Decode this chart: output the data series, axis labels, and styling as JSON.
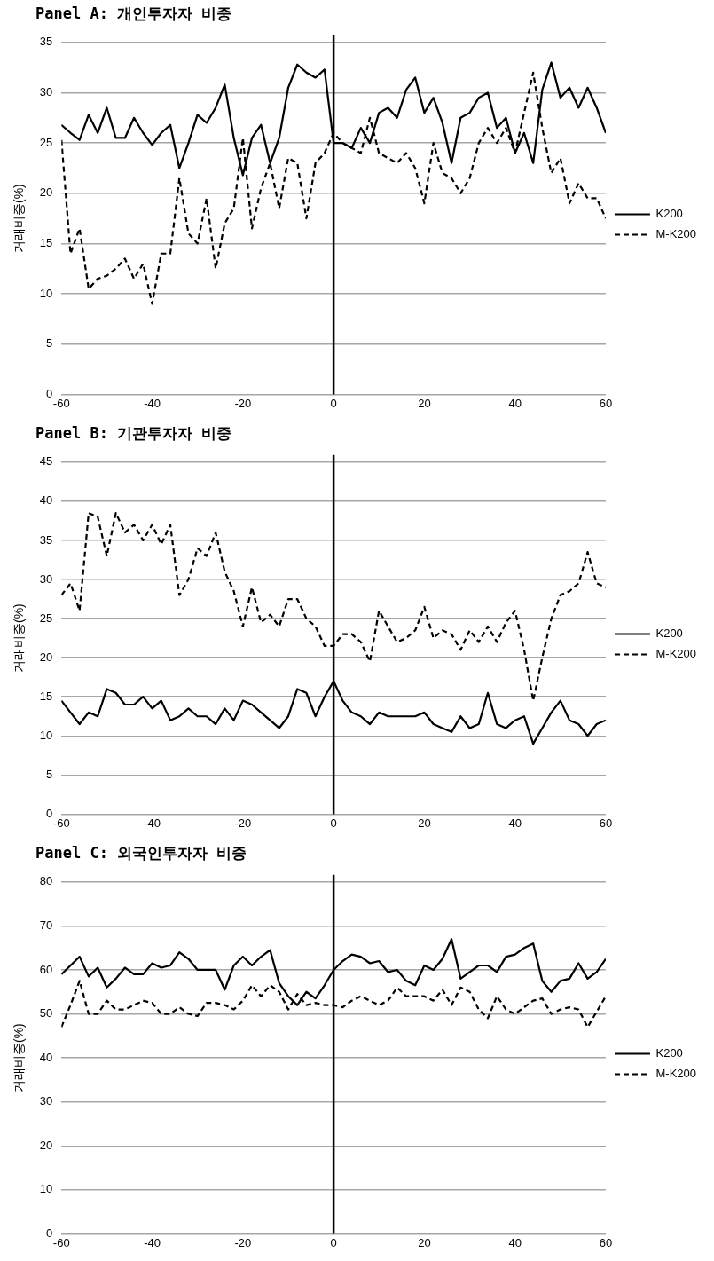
{
  "chart_data": [
    {
      "type": "line",
      "title": "Panel A: 개인투자자 비중",
      "ylabel": "거래비중(%)",
      "x": [
        -60,
        -58,
        -56,
        -54,
        -52,
        -50,
        -48,
        -46,
        -44,
        -42,
        -40,
        -38,
        -36,
        -34,
        -32,
        -30,
        -28,
        -26,
        -24,
        -22,
        -20,
        -18,
        -16,
        -14,
        -12,
        -10,
        -8,
        -6,
        -4,
        -2,
        0,
        2,
        4,
        6,
        8,
        10,
        12,
        14,
        16,
        18,
        20,
        22,
        24,
        26,
        28,
        30,
        32,
        34,
        36,
        38,
        40,
        42,
        44,
        46,
        48,
        50,
        52,
        54,
        56,
        58,
        60
      ],
      "series": [
        {
          "name": "K200",
          "color": "#000000",
          "line_style": "solid",
          "values": [
            26.8,
            26,
            25.3,
            27.8,
            26,
            28.5,
            25.5,
            25.5,
            27.5,
            26,
            24.8,
            26,
            26.8,
            22.5,
            25,
            27.8,
            27,
            28.5,
            30.8,
            25.5,
            21.8,
            25.5,
            26.8,
            23,
            25.5,
            30.5,
            32.8,
            32,
            31.5,
            32.3,
            25,
            25,
            24.5,
            26.5,
            25,
            28,
            28.5,
            27.5,
            30.3,
            31.5,
            28,
            29.5,
            27,
            23,
            27.5,
            28,
            29.5,
            30,
            26.5,
            27.5,
            24,
            26,
            23,
            30.3,
            33,
            29.5,
            30.5,
            28.5,
            30.5,
            28.5,
            26
          ]
        },
        {
          "name": "M-K200",
          "color": "#000000",
          "line_style": "dashed",
          "values": [
            25.3,
            14,
            16.5,
            10.5,
            11.5,
            11.8,
            12.5,
            13.5,
            11.5,
            13,
            9,
            14,
            14,
            21.5,
            16,
            15,
            19.5,
            12.5,
            17,
            18.5,
            25.5,
            16.5,
            20.5,
            23,
            18.5,
            23.5,
            23,
            17.5,
            23,
            24,
            26,
            25,
            24.5,
            24,
            27.5,
            24,
            23.5,
            23,
            24,
            22.5,
            19,
            25,
            22,
            21.5,
            20,
            21.5,
            25,
            26.5,
            25,
            26.5,
            24,
            28,
            32,
            26.5,
            22,
            23.5,
            19,
            21,
            19.5,
            19.5,
            17.5
          ]
        }
      ],
      "xlim": [
        -60,
        60
      ],
      "xticks": [
        -60,
        -40,
        -20,
        0,
        20,
        40,
        60
      ],
      "ylim": [
        0,
        35
      ],
      "yticks": [
        0,
        5,
        10,
        15,
        20,
        25,
        30,
        35
      ],
      "grid": "y",
      "legend": "right",
      "marker": "none",
      "ref_lines": [
        {
          "axis": "x",
          "value": 0
        }
      ]
    },
    {
      "type": "line",
      "title": "Panel B: 기관투자자 비중",
      "ylabel": "거래비중(%)",
      "x": [
        -60,
        -58,
        -56,
        -54,
        -52,
        -50,
        -48,
        -46,
        -44,
        -42,
        -40,
        -38,
        -36,
        -34,
        -32,
        -30,
        -28,
        -26,
        -24,
        -22,
        -20,
        -18,
        -16,
        -14,
        -12,
        -10,
        -8,
        -6,
        -4,
        -2,
        0,
        2,
        4,
        6,
        8,
        10,
        12,
        14,
        16,
        18,
        20,
        22,
        24,
        26,
        28,
        30,
        32,
        34,
        36,
        38,
        40,
        42,
        44,
        46,
        48,
        50,
        52,
        54,
        56,
        58,
        60
      ],
      "series": [
        {
          "name": "K200",
          "color": "#000000",
          "line_style": "solid",
          "values": [
            14.5,
            13,
            11.5,
            13,
            12.5,
            16,
            15.5,
            14,
            14,
            15,
            13.5,
            14.5,
            12,
            12.5,
            13.5,
            12.5,
            12.5,
            11.5,
            13.5,
            12,
            14.5,
            14,
            13,
            12,
            11,
            12.5,
            16,
            15.5,
            12.5,
            15,
            17,
            14.5,
            13,
            12.5,
            11.5,
            13,
            12.5,
            12.5,
            12.5,
            12.5,
            13,
            11.5,
            11,
            10.5,
            12.5,
            11,
            11.5,
            15.5,
            11.5,
            11,
            12,
            12.5,
            9,
            11,
            13,
            14.5,
            12,
            11.5,
            10,
            11.5,
            12
          ]
        },
        {
          "name": "M-K200",
          "color": "#000000",
          "line_style": "dashed",
          "values": [
            28,
            29.5,
            26,
            38.5,
            38,
            33,
            38.5,
            36,
            37,
            35,
            37,
            34.5,
            37,
            28,
            30,
            34,
            33,
            36,
            31,
            28.5,
            24,
            29,
            24.5,
            25.5,
            24,
            27.5,
            27.5,
            25,
            24,
            21.5,
            21.5,
            23,
            23,
            22,
            19.5,
            26,
            24,
            22,
            22.5,
            23.5,
            26.5,
            22.5,
            23.5,
            23,
            21,
            23.5,
            22,
            24,
            22,
            24.5,
            26,
            21,
            14.5,
            20,
            25,
            28,
            28.5,
            29.5,
            33.5,
            29.5,
            29
          ]
        }
      ],
      "xlim": [
        -60,
        60
      ],
      "xticks": [
        -60,
        -40,
        -20,
        0,
        20,
        40,
        60
      ],
      "ylim": [
        0,
        45
      ],
      "yticks": [
        0,
        5,
        10,
        15,
        20,
        25,
        30,
        35,
        40,
        45
      ],
      "grid": "y",
      "legend": "right",
      "marker": "none",
      "ref_lines": [
        {
          "axis": "x",
          "value": 0
        }
      ]
    },
    {
      "type": "line",
      "title": "Panel C: 외국인투자자 비중",
      "ylabel": "거래비중(%)",
      "x": [
        -60,
        -58,
        -56,
        -54,
        -52,
        -50,
        -48,
        -46,
        -44,
        -42,
        -40,
        -38,
        -36,
        -34,
        -32,
        -30,
        -28,
        -26,
        -24,
        -22,
        -20,
        -18,
        -16,
        -14,
        -12,
        -10,
        -8,
        -6,
        -4,
        -2,
        0,
        2,
        4,
        6,
        8,
        10,
        12,
        14,
        16,
        18,
        20,
        22,
        24,
        26,
        28,
        30,
        32,
        34,
        36,
        38,
        40,
        42,
        44,
        46,
        48,
        50,
        52,
        54,
        56,
        58,
        60
      ],
      "series": [
        {
          "name": "K200",
          "color": "#000000",
          "line_style": "solid",
          "values": [
            59,
            61,
            63,
            58.5,
            60.5,
            56,
            58,
            60.5,
            59,
            59,
            61.5,
            60.5,
            61,
            64,
            62.5,
            60,
            60,
            60,
            55.5,
            61,
            63,
            61,
            63,
            64.5,
            57,
            54,
            52,
            55,
            53.5,
            56.5,
            60,
            62,
            63.5,
            63,
            61.5,
            62,
            59.5,
            60,
            57.5,
            56.5,
            61,
            60,
            62.5,
            67,
            58,
            59.5,
            61,
            61,
            59.5,
            63,
            63.5,
            65,
            66,
            57.5,
            55,
            57.5,
            58,
            61.5,
            58,
            59.5,
            62.5
          ]
        },
        {
          "name": "M-K200",
          "color": "#000000",
          "line_style": "dashed",
          "values": [
            47,
            52,
            57.5,
            50,
            50,
            53,
            51,
            51,
            52,
            53,
            52.5,
            50,
            50,
            51.5,
            50,
            49.5,
            52.5,
            52.5,
            52,
            51,
            53,
            56.5,
            54,
            56.5,
            55,
            51,
            54.5,
            52,
            52.5,
            52,
            52,
            51.5,
            53,
            54,
            53,
            52,
            53,
            56,
            54,
            54,
            54,
            53,
            55.5,
            52,
            56,
            55,
            51,
            49,
            54,
            51,
            50,
            51.5,
            53,
            53.5,
            50,
            51,
            51.5,
            51,
            47,
            50.5,
            54
          ]
        }
      ],
      "xlim": [
        -60,
        60
      ],
      "xticks": [
        -60,
        -40,
        -20,
        0,
        20,
        40,
        60
      ],
      "ylim": [
        0,
        80
      ],
      "yticks": [
        0,
        10,
        20,
        30,
        40,
        50,
        60,
        70,
        80
      ],
      "grid": "y",
      "legend": "right",
      "marker": "none",
      "ref_lines": [
        {
          "axis": "x",
          "value": 0
        }
      ]
    }
  ]
}
